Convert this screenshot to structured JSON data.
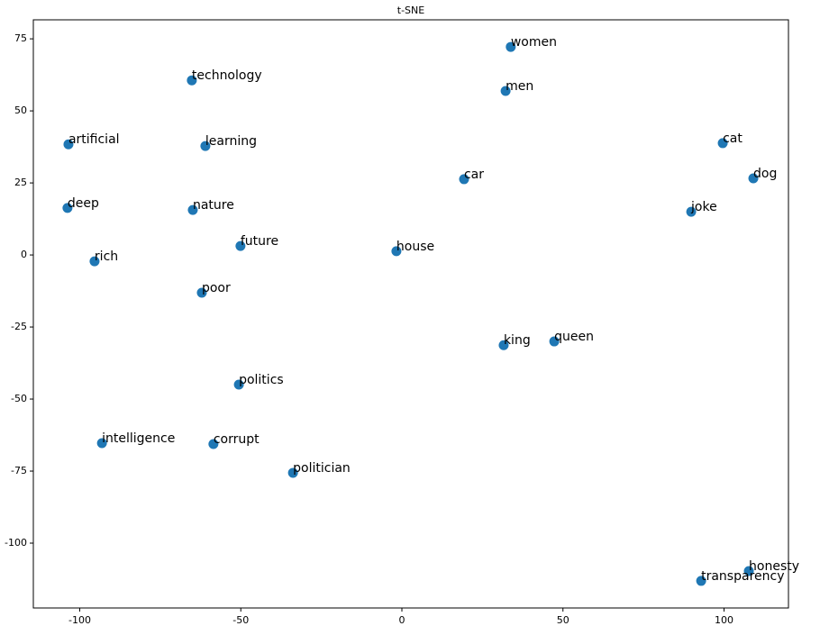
{
  "chart_data": {
    "type": "scatter",
    "title": "t-SNE",
    "color": "#1f77b4",
    "labels": [
      "women",
      "technology",
      "men",
      "artificial",
      "learning",
      "cat",
      "car",
      "dog",
      "deep",
      "nature",
      "joke",
      "future",
      "house",
      "rich",
      "poor",
      "queen",
      "king",
      "politics",
      "intelligence",
      "corrupt",
      "politician",
      "honesty",
      "transparency"
    ],
    "x": [
      33.8,
      -65.2,
      32.2,
      -103.5,
      -61.0,
      99.6,
      19.3,
      109.1,
      -103.8,
      -64.9,
      89.8,
      -50.1,
      -1.7,
      -95.4,
      -62.1,
      47.3,
      31.6,
      -50.6,
      -93.1,
      -58.5,
      -33.8,
      107.7,
      92.9
    ],
    "y": [
      72.2,
      60.6,
      56.9,
      38.4,
      37.8,
      38.8,
      26.3,
      26.6,
      16.3,
      15.6,
      15.0,
      3.1,
      1.3,
      -2.2,
      -13.1,
      -30.0,
      -31.3,
      -45.0,
      -65.3,
      -65.6,
      -75.6,
      -109.7,
      -113.1
    ],
    "xlim": [
      -114.4,
      120
    ],
    "ylim": [
      -122.5,
      81.6
    ],
    "xticks": [
      -100,
      -50,
      0,
      50,
      100
    ],
    "yticks": [
      75,
      50,
      25,
      0,
      -25,
      -50,
      -75,
      -100
    ]
  }
}
